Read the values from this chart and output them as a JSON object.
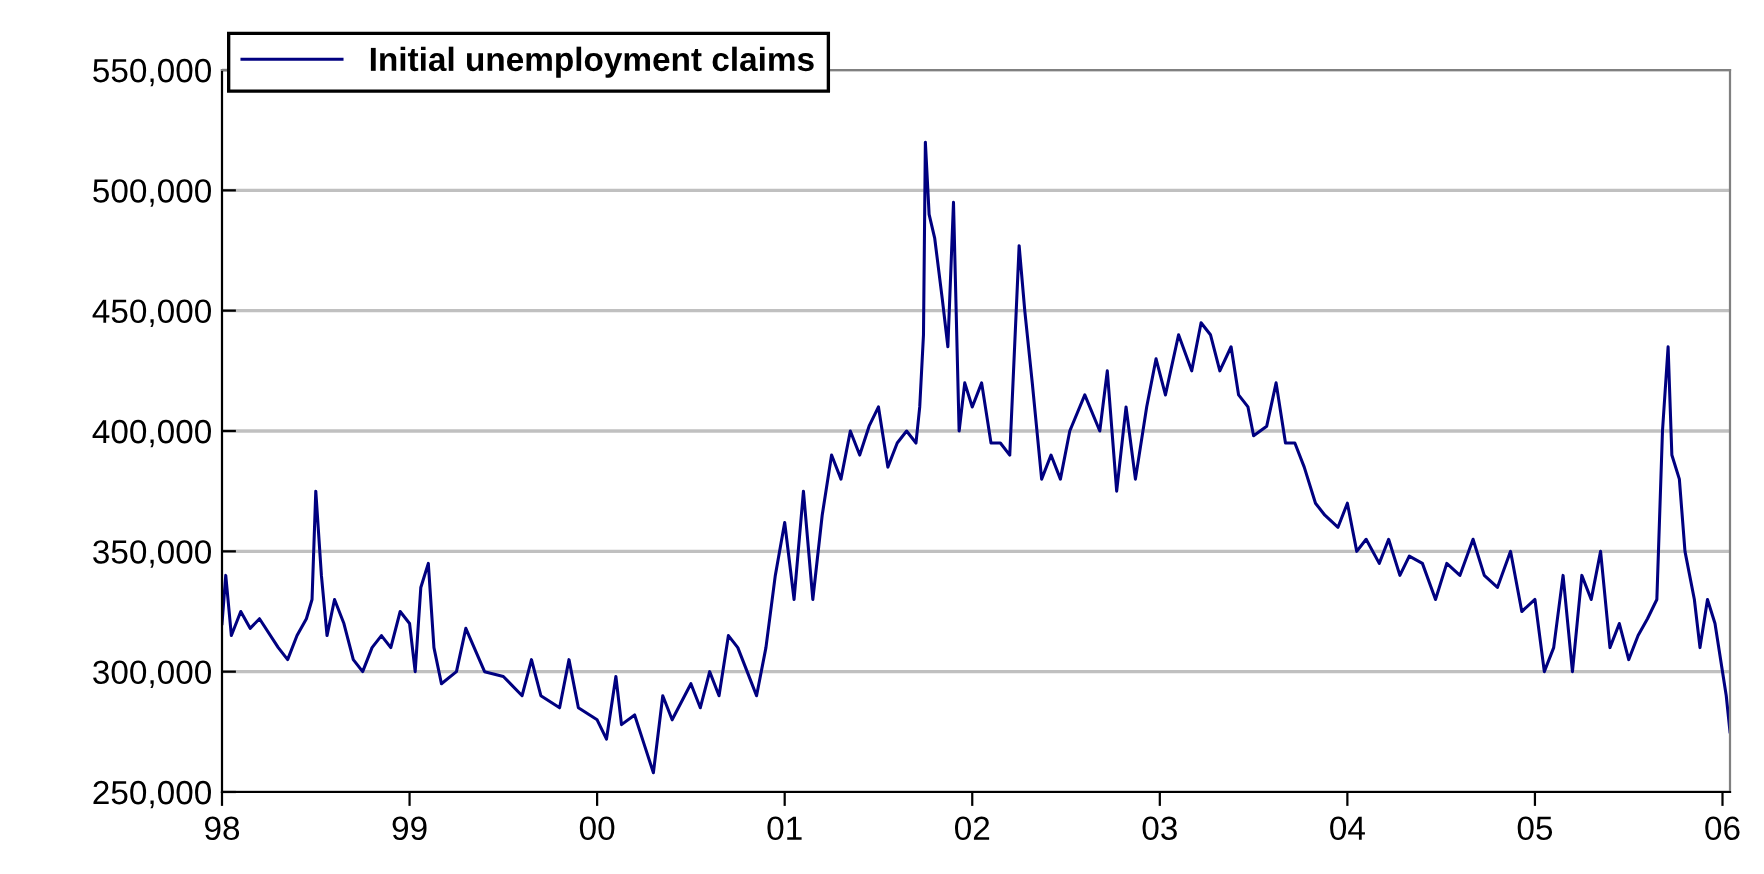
{
  "chart_data": {
    "type": "line",
    "x": [
      1998.0,
      1998.02,
      1998.05,
      1998.1,
      1998.15,
      1998.2,
      1998.3,
      1998.35,
      1998.4,
      1998.45,
      1998.48,
      1998.5,
      1998.53,
      1998.56,
      1998.6,
      1998.65,
      1998.7,
      1998.75,
      1998.8,
      1998.85,
      1998.9,
      1998.95,
      1999.0,
      1999.03,
      1999.06,
      1999.1,
      1999.13,
      1999.17,
      1999.25,
      1999.3,
      1999.4,
      1999.5,
      1999.6,
      1999.65,
      1999.7,
      1999.8,
      1999.85,
      1999.9,
      2000.0,
      2000.05,
      2000.1,
      2000.13,
      2000.2,
      2000.25,
      2000.3,
      2000.35,
      2000.4,
      2000.5,
      2000.55,
      2000.6,
      2000.65,
      2000.7,
      2000.75,
      2000.8,
      2000.85,
      2000.9,
      2000.95,
      2001.0,
      2001.05,
      2001.1,
      2001.15,
      2001.2,
      2001.25,
      2001.3,
      2001.35,
      2001.4,
      2001.45,
      2001.5,
      2001.55,
      2001.6,
      2001.65,
      2001.7,
      2001.72,
      2001.74,
      2001.75,
      2001.77,
      2001.8,
      2001.84,
      2001.87,
      2001.9,
      2001.93,
      2001.96,
      2002.0,
      2002.05,
      2002.1,
      2002.15,
      2002.2,
      2002.25,
      2002.28,
      2002.32,
      2002.37,
      2002.42,
      2002.47,
      2002.52,
      2002.6,
      2002.68,
      2002.72,
      2002.77,
      2002.82,
      2002.87,
      2002.93,
      2002.98,
      2003.03,
      2003.1,
      2003.17,
      2003.22,
      2003.27,
      2003.32,
      2003.38,
      2003.42,
      2003.47,
      2003.5,
      2003.57,
      2003.62,
      2003.67,
      2003.72,
      2003.77,
      2003.83,
      2003.88,
      2003.95,
      2004.0,
      2004.05,
      2004.1,
      2004.17,
      2004.22,
      2004.28,
      2004.33,
      2004.4,
      2004.47,
      2004.53,
      2004.6,
      2004.67,
      2004.73,
      2004.8,
      2004.87,
      2004.93,
      2005.0,
      2005.05,
      2005.1,
      2005.15,
      2005.2,
      2005.25,
      2005.3,
      2005.35,
      2005.4,
      2005.45,
      2005.5,
      2005.55,
      2005.6,
      2005.65,
      2005.68,
      2005.71,
      2005.73,
      2005.77,
      2005.8,
      2005.85,
      2005.88,
      2005.92,
      2005.96,
      2006.0,
      2006.02,
      2006.04
    ],
    "series": [
      {
        "name": "Initial unemployment claims",
        "color": "#000080",
        "values": [
          320000,
          340000,
          315000,
          325000,
          318000,
          322000,
          310000,
          305000,
          315000,
          322000,
          330000,
          375000,
          340000,
          315000,
          330000,
          320000,
          305000,
          300000,
          310000,
          315000,
          310000,
          325000,
          320000,
          300000,
          335000,
          345000,
          310000,
          295000,
          300000,
          318000,
          300000,
          298000,
          290000,
          305000,
          290000,
          285000,
          305000,
          285000,
          280000,
          272000,
          298000,
          278000,
          282000,
          270000,
          258000,
          290000,
          280000,
          295000,
          285000,
          300000,
          290000,
          315000,
          310000,
          300000,
          290000,
          310000,
          340000,
          362000,
          330000,
          375000,
          330000,
          365000,
          390000,
          380000,
          400000,
          390000,
          402000,
          410000,
          385000,
          395000,
          400000,
          395000,
          410000,
          440000,
          520000,
          490000,
          480000,
          455000,
          435000,
          495000,
          400000,
          420000,
          410000,
          420000,
          395000,
          395000,
          390000,
          477000,
          450000,
          420000,
          380000,
          390000,
          380000,
          400000,
          415000,
          400000,
          425000,
          375000,
          410000,
          380000,
          410000,
          430000,
          415000,
          440000,
          425000,
          445000,
          440000,
          425000,
          435000,
          415000,
          410000,
          398000,
          402000,
          420000,
          395000,
          395000,
          385000,
          370000,
          365000,
          360000,
          370000,
          350000,
          355000,
          345000,
          355000,
          340000,
          348000,
          345000,
          330000,
          345000,
          340000,
          355000,
          340000,
          335000,
          350000,
          325000,
          330000,
          300000,
          310000,
          340000,
          300000,
          340000,
          330000,
          350000,
          310000,
          320000,
          305000,
          315000,
          322000,
          330000,
          400000,
          435000,
          390000,
          380000,
          350000,
          330000,
          310000,
          330000,
          320000,
          300000,
          290000,
          275000
        ]
      }
    ],
    "xlim": [
      1998.0,
      2006.04
    ],
    "xticks": [
      {
        "value": 1998,
        "label": "98"
      },
      {
        "value": 1999,
        "label": "99"
      },
      {
        "value": 2000,
        "label": "00"
      },
      {
        "value": 2001,
        "label": "01"
      },
      {
        "value": 2002,
        "label": "02"
      },
      {
        "value": 2003,
        "label": "03"
      },
      {
        "value": 2004,
        "label": "04"
      },
      {
        "value": 2005,
        "label": "05"
      },
      {
        "value": 2006,
        "label": "06"
      }
    ],
    "ylim": [
      250000,
      550000
    ],
    "yticks": [
      {
        "value": 250000,
        "label": "250,000"
      },
      {
        "value": 300000,
        "label": "300,000"
      },
      {
        "value": 350000,
        "label": "350,000"
      },
      {
        "value": 400000,
        "label": "400,000"
      },
      {
        "value": 450000,
        "label": "450,000"
      },
      {
        "value": 500000,
        "label": "500,000"
      },
      {
        "value": 550000,
        "label": "550,000"
      }
    ],
    "grid": "y",
    "legend": "top left",
    "line_style": "solid",
    "marker": "none"
  }
}
